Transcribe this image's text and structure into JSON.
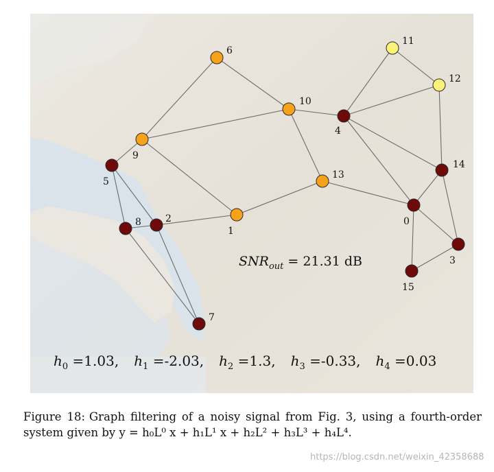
{
  "figure": {
    "snr_label": "SNR",
    "snr_sub": "out",
    "snr_value": " = 21.31 dB",
    "coefficients": [
      {
        "name": "h",
        "sub": "0",
        "value": " =1.03,"
      },
      {
        "name": "h",
        "sub": "1",
        "value": " =-2.03,"
      },
      {
        "name": "h",
        "sub": "2",
        "value": " =1.3,"
      },
      {
        "name": "h",
        "sub": "3",
        "value": " =-0.33,"
      },
      {
        "name": "h",
        "sub": "4",
        "value": " =0.03"
      }
    ],
    "node_colors": {
      "dark": "#6e0a0a",
      "orange": "#f7a21b",
      "yellow": "#fbf27a"
    },
    "nodes": [
      {
        "id": "0",
        "label": "0",
        "color": "dark"
      },
      {
        "id": "1",
        "label": "1",
        "color": "orange"
      },
      {
        "id": "2",
        "label": "2",
        "color": "dark"
      },
      {
        "id": "3",
        "label": "3",
        "color": "dark"
      },
      {
        "id": "4",
        "label": "4",
        "color": "dark"
      },
      {
        "id": "5",
        "label": "5",
        "color": "dark"
      },
      {
        "id": "6",
        "label": "6",
        "color": "orange"
      },
      {
        "id": "7",
        "label": "7",
        "color": "dark"
      },
      {
        "id": "8",
        "label": "8",
        "color": "dark"
      },
      {
        "id": "9",
        "label": "9",
        "color": "orange"
      },
      {
        "id": "10",
        "label": "10",
        "color": "orange"
      },
      {
        "id": "11",
        "label": "11",
        "color": "yellow"
      },
      {
        "id": "12",
        "label": "12",
        "color": "yellow"
      },
      {
        "id": "13",
        "label": "13",
        "color": "orange"
      },
      {
        "id": "14",
        "label": "14",
        "color": "dark"
      },
      {
        "id": "15",
        "label": "15",
        "color": "dark"
      }
    ],
    "edges": [
      [
        "6",
        "9"
      ],
      [
        "6",
        "10"
      ],
      [
        "9",
        "10"
      ],
      [
        "9",
        "5"
      ],
      [
        "9",
        "1"
      ],
      [
        "10",
        "4"
      ],
      [
        "10",
        "13"
      ],
      [
        "4",
        "11"
      ],
      [
        "4",
        "12"
      ],
      [
        "11",
        "12"
      ],
      [
        "4",
        "14"
      ],
      [
        "4",
        "0"
      ],
      [
        "12",
        "14"
      ],
      [
        "14",
        "0"
      ],
      [
        "14",
        "3"
      ],
      [
        "0",
        "13"
      ],
      [
        "0",
        "3"
      ],
      [
        "0",
        "15"
      ],
      [
        "15",
        "3"
      ],
      [
        "13",
        "1"
      ],
      [
        "1",
        "2"
      ],
      [
        "2",
        "8"
      ],
      [
        "2",
        "5"
      ],
      [
        "2",
        "7"
      ],
      [
        "5",
        "8"
      ],
      [
        "8",
        "7"
      ]
    ]
  },
  "caption": {
    "lead": "Figure 18:",
    "line1": "Graph filtering of a noisy signal from Fig. 3, using a fourth-order system given by",
    "equation": "y = h₀L⁰ x + h₁L¹ x + h₂L² + h₃L³ + h₄L⁴."
  },
  "watermark": "https://blog.csdn.net/weixin_42358688"
}
